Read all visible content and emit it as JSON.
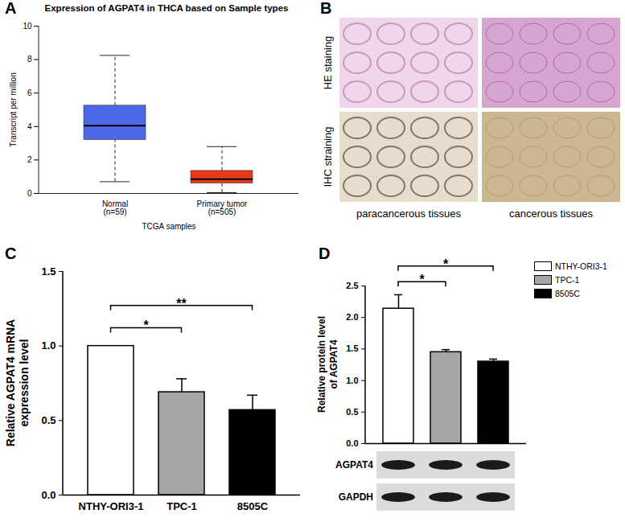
{
  "chart_data": [
    {
      "panel": "A",
      "type": "boxplot",
      "title": "Expression of AGPAT4 in THCA based on Sample types",
      "x_label": "TCGA samples",
      "y_label": "Transcript per million",
      "categories": [
        "Normal\n(n=59)",
        "Primary tumor\n(n=505)"
      ],
      "colors": [
        "#4d68e6",
        "#e8391d"
      ],
      "boxes": [
        {
          "min": 0.7,
          "q1": 3.2,
          "median": 4.05,
          "q3": 5.25,
          "max": 8.25
        },
        {
          "min": 0.05,
          "q1": 0.6,
          "median": 0.85,
          "q3": 1.35,
          "max": 2.8
        }
      ],
      "ylim": [
        0,
        10
      ],
      "yticks": [
        0,
        2,
        4,
        6,
        8,
        10
      ]
    },
    {
      "panel": "B",
      "type": "image_grid",
      "row_labels": [
        "HE staining",
        "IHC straining"
      ],
      "column_labels": [
        "paracancerous tissues",
        "cancerous tissues"
      ]
    },
    {
      "panel": "C",
      "type": "bar",
      "y_label": "Relative AGPAT4 mRNA expression level",
      "categories": [
        "NTHY-ORI3-1",
        "TPC-1",
        "8505C"
      ],
      "values": [
        1.0,
        0.69,
        0.57
      ],
      "errors": [
        0,
        0.09,
        0.1
      ],
      "colors": [
        "#ffffff",
        "#a6a6a6",
        "#000000"
      ],
      "significance": [
        {
          "from": "NTHY-ORI3-1",
          "to": "TPC-1",
          "label": "*"
        },
        {
          "from": "NTHY-ORI3-1",
          "to": "8505C",
          "label": "**"
        }
      ],
      "ylim": [
        0,
        1.5
      ],
      "yticks": [
        {
          "value": 0,
          "label": "0.0"
        },
        {
          "value": 0.5,
          "label": "0.5"
        },
        {
          "value": 1,
          "label": "1.0"
        },
        {
          "value": 1.5,
          "label": "1.5"
        }
      ]
    },
    {
      "panel": "D",
      "type": "bar",
      "y_label": "Relative protein level of AGPAT4",
      "categories": [
        "NTHY-ORI3-1",
        "TPC-1",
        "8505C"
      ],
      "values": [
        2.14,
        1.45,
        1.3
      ],
      "errors": [
        0.22,
        0.04,
        0.04
      ],
      "colors": [
        "#ffffff",
        "#a6a6a6",
        "#000000"
      ],
      "significance": [
        {
          "from": "NTHY-ORI3-1",
          "to": "TPC-1",
          "label": "*"
        },
        {
          "from": "NTHY-ORI3-1",
          "to": "8505C",
          "label": "*"
        }
      ],
      "legend": "top-right",
      "tick_labels": "y",
      "blot_labels": [
        "AGPAT4",
        "GAPDH"
      ],
      "ylim": [
        0,
        2.5
      ],
      "yticks": [
        {
          "value": 0,
          "label": "0.0"
        },
        {
          "value": 0.5,
          "label": "0.5"
        },
        {
          "value": 1,
          "label": "1.0"
        },
        {
          "value": 1.5,
          "label": "1.5"
        },
        {
          "value": 2,
          "label": "2.0"
        },
        {
          "value": 2.5,
          "label": "2.5"
        }
      ]
    }
  ]
}
